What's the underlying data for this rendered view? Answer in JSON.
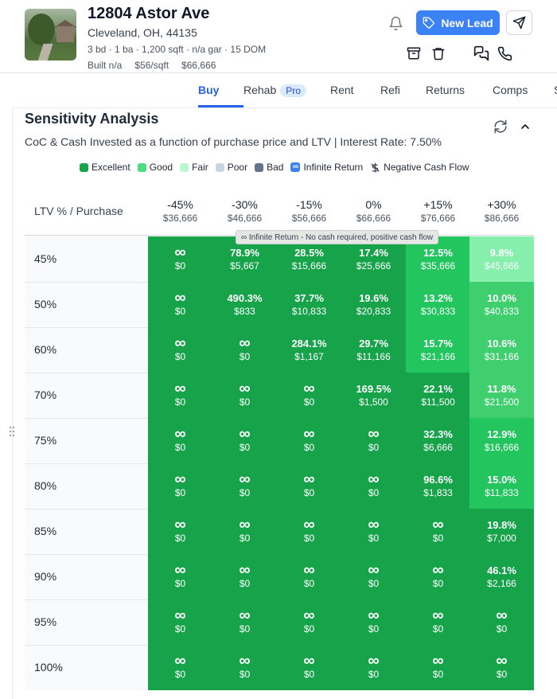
{
  "property": {
    "address": "12804 Astor Ave",
    "city": "Cleveland, OH, 44135",
    "specs": "3 bd · 1 ba · 1,200 sqft · n/a gar · 15 DOM",
    "built": "Built n/a",
    "price_per_sqft": "$56/sqft",
    "price": "$66,666"
  },
  "actions": {
    "new_lead_label": "New Lead"
  },
  "tabs": [
    {
      "label": "Buy",
      "active": true
    },
    {
      "label": "Rehab",
      "badge": "Pro"
    },
    {
      "label": "Rent"
    },
    {
      "label": "Refi"
    },
    {
      "label": "Returns"
    },
    {
      "label": "Comps"
    },
    {
      "label": "S"
    }
  ],
  "sensitivity": {
    "title": "Sensitivity Analysis",
    "subtitle": "CoC & Cash Invested as a function of purchase price and LTV | Interest Rate: 7.50%",
    "legend": [
      {
        "label": "Excellent",
        "color": "#16a34a"
      },
      {
        "label": "Good",
        "color": "#4ade80"
      },
      {
        "label": "Fair",
        "color": "#bbf7d0"
      },
      {
        "label": "Poor",
        "color": "#cbd5e1"
      },
      {
        "label": "Bad",
        "color": "#64748b"
      },
      {
        "label": "Infinite Return",
        "icon": "infinity-icon",
        "color": "#3b82f6"
      },
      {
        "label": "Negative Cash Flow",
        "icon": "negative-cashflow-icon"
      }
    ],
    "row_header": "LTV % / Purchase",
    "columns": [
      {
        "pct": "-45%",
        "price": "$36,666"
      },
      {
        "pct": "-30%",
        "price": "$46,666"
      },
      {
        "pct": "-15%",
        "price": "$56,666"
      },
      {
        "pct": "0%",
        "price": "$66,666"
      },
      {
        "pct": "+15%",
        "price": "$76,666"
      },
      {
        "pct": "+30%",
        "price": "$86,666"
      }
    ],
    "tooltip": "∞ Infinite Return - No cash required, positive cash flow",
    "rows": [
      {
        "ltv": "45%",
        "cells": [
          {
            "value": "∞",
            "cash": "$0",
            "tier": "excellent"
          },
          {
            "value": "78.9%",
            "cash": "$5,667",
            "tier": "excellent"
          },
          {
            "value": "28.5%",
            "cash": "$15,666",
            "tier": "excellent"
          },
          {
            "value": "17.4%",
            "cash": "$25,666",
            "tier": "excellent"
          },
          {
            "value": "12.5%",
            "cash": "$35,666",
            "tier": "good"
          },
          {
            "value": "9.8%",
            "cash": "$45,666",
            "tier": "fair"
          }
        ]
      },
      {
        "ltv": "50%",
        "cells": [
          {
            "value": "∞",
            "cash": "$0",
            "tier": "excellent"
          },
          {
            "value": "490.3%",
            "cash": "$833",
            "tier": "excellent"
          },
          {
            "value": "37.7%",
            "cash": "$10,833",
            "tier": "excellent"
          },
          {
            "value": "19.6%",
            "cash": "$20,833",
            "tier": "excellent"
          },
          {
            "value": "13.2%",
            "cash": "$30,833",
            "tier": "good"
          },
          {
            "value": "10.0%",
            "cash": "$40,833",
            "tier": "good-light"
          }
        ]
      },
      {
        "ltv": "60%",
        "cells": [
          {
            "value": "∞",
            "cash": "$0",
            "tier": "excellent"
          },
          {
            "value": "∞",
            "cash": "$0",
            "tier": "excellent"
          },
          {
            "value": "284.1%",
            "cash": "$1,167",
            "tier": "excellent"
          },
          {
            "value": "29.7%",
            "cash": "$11,166",
            "tier": "excellent"
          },
          {
            "value": "15.7%",
            "cash": "$21,166",
            "tier": "good"
          },
          {
            "value": "10.6%",
            "cash": "$31,166",
            "tier": "good-light"
          }
        ]
      },
      {
        "ltv": "70%",
        "cells": [
          {
            "value": "∞",
            "cash": "$0",
            "tier": "excellent"
          },
          {
            "value": "∞",
            "cash": "$0",
            "tier": "excellent"
          },
          {
            "value": "∞",
            "cash": "$0",
            "tier": "excellent"
          },
          {
            "value": "169.5%",
            "cash": "$1,500",
            "tier": "excellent"
          },
          {
            "value": "22.1%",
            "cash": "$11,500",
            "tier": "excellent"
          },
          {
            "value": "11.8%",
            "cash": "$21,500",
            "tier": "good-light"
          }
        ]
      },
      {
        "ltv": "75%",
        "cells": [
          {
            "value": "∞",
            "cash": "$0",
            "tier": "excellent"
          },
          {
            "value": "∞",
            "cash": "$0",
            "tier": "excellent"
          },
          {
            "value": "∞",
            "cash": "$0",
            "tier": "excellent"
          },
          {
            "value": "∞",
            "cash": "$0",
            "tier": "excellent"
          },
          {
            "value": "32.3%",
            "cash": "$6,666",
            "tier": "excellent"
          },
          {
            "value": "12.9%",
            "cash": "$16,666",
            "tier": "good"
          }
        ]
      },
      {
        "ltv": "80%",
        "cells": [
          {
            "value": "∞",
            "cash": "$0",
            "tier": "excellent"
          },
          {
            "value": "∞",
            "cash": "$0",
            "tier": "excellent"
          },
          {
            "value": "∞",
            "cash": "$0",
            "tier": "excellent"
          },
          {
            "value": "∞",
            "cash": "$0",
            "tier": "excellent"
          },
          {
            "value": "96.6%",
            "cash": "$1,833",
            "tier": "excellent"
          },
          {
            "value": "15.0%",
            "cash": "$11,833",
            "tier": "good"
          }
        ]
      },
      {
        "ltv": "85%",
        "cells": [
          {
            "value": "∞",
            "cash": "$0",
            "tier": "excellent"
          },
          {
            "value": "∞",
            "cash": "$0",
            "tier": "excellent"
          },
          {
            "value": "∞",
            "cash": "$0",
            "tier": "excellent"
          },
          {
            "value": "∞",
            "cash": "$0",
            "tier": "excellent"
          },
          {
            "value": "∞",
            "cash": "$0",
            "tier": "excellent"
          },
          {
            "value": "19.8%",
            "cash": "$7,000",
            "tier": "excellent"
          }
        ]
      },
      {
        "ltv": "90%",
        "cells": [
          {
            "value": "∞",
            "cash": "$0",
            "tier": "excellent"
          },
          {
            "value": "∞",
            "cash": "$0",
            "tier": "excellent"
          },
          {
            "value": "∞",
            "cash": "$0",
            "tier": "excellent"
          },
          {
            "value": "∞",
            "cash": "$0",
            "tier": "excellent"
          },
          {
            "value": "∞",
            "cash": "$0",
            "tier": "excellent"
          },
          {
            "value": "46.1%",
            "cash": "$2,166",
            "tier": "excellent"
          }
        ]
      },
      {
        "ltv": "95%",
        "cells": [
          {
            "value": "∞",
            "cash": "$0",
            "tier": "excellent"
          },
          {
            "value": "∞",
            "cash": "$0",
            "tier": "excellent"
          },
          {
            "value": "∞",
            "cash": "$0",
            "tier": "excellent"
          },
          {
            "value": "∞",
            "cash": "$0",
            "tier": "excellent"
          },
          {
            "value": "∞",
            "cash": "$0",
            "tier": "excellent"
          },
          {
            "value": "∞",
            "cash": "$0",
            "tier": "excellent"
          }
        ]
      },
      {
        "ltv": "100%",
        "cells": [
          {
            "value": "∞",
            "cash": "$0",
            "tier": "excellent"
          },
          {
            "value": "∞",
            "cash": "$0",
            "tier": "excellent"
          },
          {
            "value": "∞",
            "cash": "$0",
            "tier": "excellent"
          },
          {
            "value": "∞",
            "cash": "$0",
            "tier": "excellent"
          },
          {
            "value": "∞",
            "cash": "$0",
            "tier": "excellent"
          },
          {
            "value": "∞",
            "cash": "$0",
            "tier": "excellent"
          }
        ]
      }
    ],
    "tier_colors": {
      "excellent": "#16a34a",
      "good": "#22c55e",
      "good-light": "#3fcf6e",
      "fair": "#86efac"
    }
  }
}
